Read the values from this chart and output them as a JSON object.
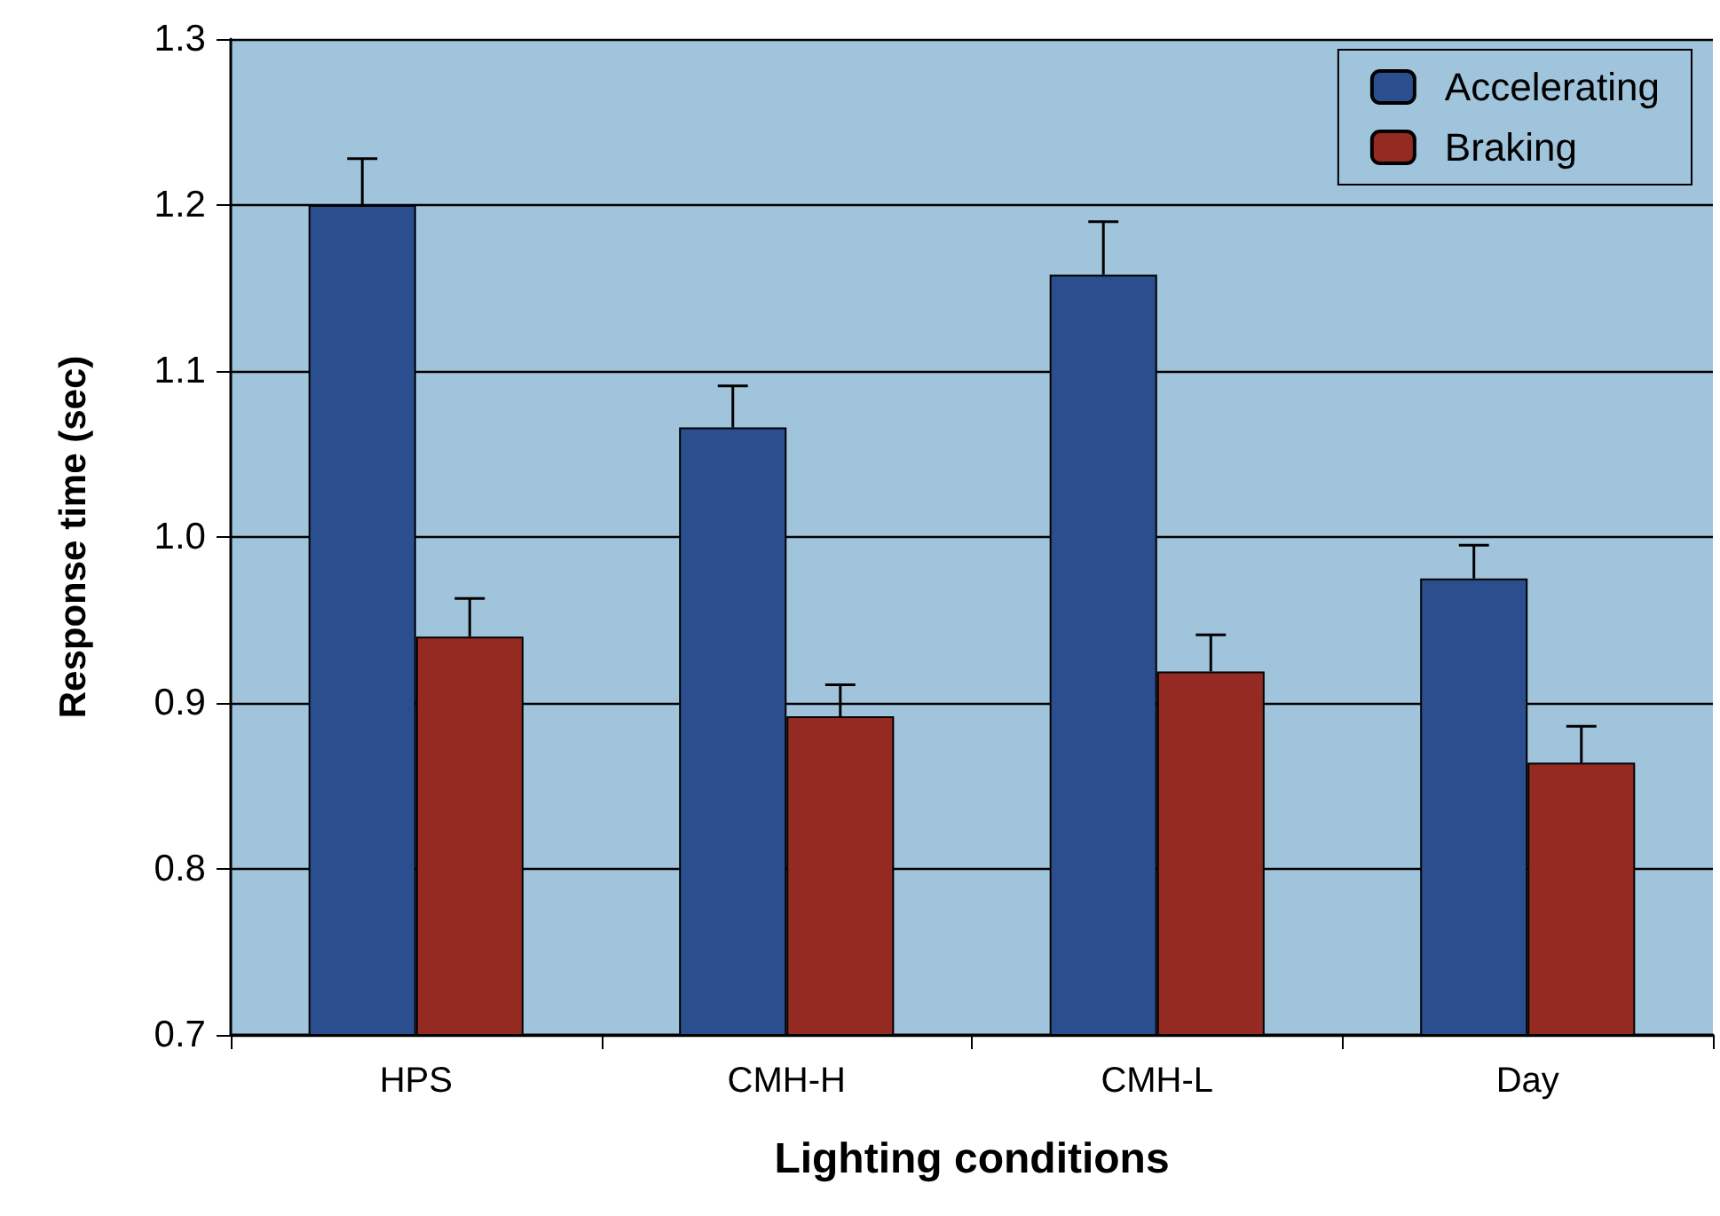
{
  "chart_data": {
    "type": "bar",
    "xlabel": "Lighting conditions",
    "ylabel": "Response time (sec)",
    "categories": [
      "HPS",
      "CMH-H",
      "CMH-L",
      "Day"
    ],
    "series": [
      {
        "name": "Accelerating",
        "color": "#2b4f8e",
        "values": [
          1.2,
          1.066,
          1.158,
          0.975
        ],
        "errors": [
          [
            1.2,
            1.228
          ],
          [
            1.066,
            1.091
          ],
          [
            1.158,
            1.19
          ],
          [
            0.975,
            0.995
          ]
        ]
      },
      {
        "name": "Braking",
        "color": "#952a22",
        "values": [
          0.94,
          0.892,
          0.919,
          0.864
        ],
        "errors": [
          [
            0.94,
            0.963
          ],
          [
            0.892,
            0.911
          ],
          [
            0.919,
            0.941
          ],
          [
            0.864,
            0.886
          ]
        ]
      }
    ],
    "ylim": [
      0.7,
      1.3
    ],
    "yticks": [
      0.7,
      0.8,
      0.9,
      {
        "value": 1,
        "label": "1.0"
      },
      1.1,
      1.2,
      1.3
    ],
    "grid": "y",
    "legend": "top right"
  }
}
